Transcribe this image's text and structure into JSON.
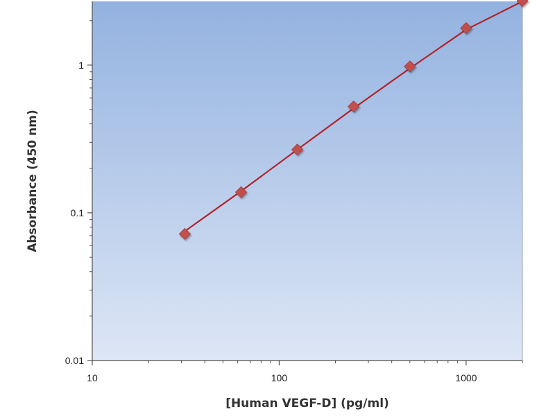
{
  "chart_data": {
    "type": "scatter",
    "title": "",
    "xlabel": "[Human VEGF-D] (pg/ml)",
    "ylabel": "Absorbance (450 nm)",
    "x_scale": "log",
    "y_scale": "log",
    "xlim": [
      10,
      2000
    ],
    "ylim": [
      0.01,
      2.7
    ],
    "x_ticks": [
      {
        "value": 10,
        "label": "10"
      },
      {
        "value": 100,
        "label": "100"
      },
      {
        "value": 1000,
        "label": "1000"
      }
    ],
    "y_ticks": [
      {
        "value": 0.01,
        "label": "0.01"
      },
      {
        "value": 0.1,
        "label": "0.1"
      },
      {
        "value": 1,
        "label": "1"
      }
    ],
    "grid": false,
    "legend": "none",
    "series": [
      {
        "marker": "diamond",
        "color": "#c0504d",
        "points": [
          {
            "x": 31.25,
            "y": 0.072
          },
          {
            "x": 62.5,
            "y": 0.138
          },
          {
            "x": 125,
            "y": 0.268
          },
          {
            "x": 250,
            "y": 0.525
          },
          {
            "x": 500,
            "y": 0.98
          },
          {
            "x": 1000,
            "y": 1.78
          },
          {
            "x": 2000,
            "y": 2.72
          }
        ]
      }
    ],
    "fit_line": {
      "color": "#b0232a",
      "points": [
        {
          "x": 31.25,
          "y": 0.075
        },
        {
          "x": 62.5,
          "y": 0.14
        },
        {
          "x": 125,
          "y": 0.268
        },
        {
          "x": 250,
          "y": 0.51
        },
        {
          "x": 500,
          "y": 0.95
        },
        {
          "x": 1000,
          "y": 1.74
        },
        {
          "x": 2000,
          "y": 2.7
        }
      ]
    },
    "plot_background": {
      "top": "#93b2e0",
      "bottom": "#dde6f5"
    }
  }
}
